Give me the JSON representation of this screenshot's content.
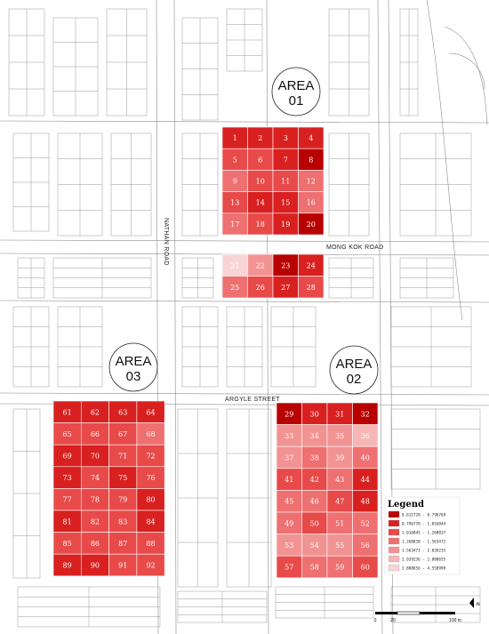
{
  "areas": [
    {
      "id": "01",
      "line1": "AREA",
      "line2": "01"
    },
    {
      "id": "02",
      "line1": "AREA",
      "line2": "02"
    },
    {
      "id": "03",
      "line1": "AREA",
      "line2": "03"
    }
  ],
  "roads": {
    "nathan_road": "NATHAN ROAD",
    "mong_kok_road": "MONG KOK ROAD",
    "argyle_street": "ARGYLE STREET"
  },
  "legend": {
    "title": "Legend",
    "classes": [
      {
        "label": "0.611728 - 0.796769",
        "color": "#b80000"
      },
      {
        "label": "0.796770 - 1.016844",
        "color": "#d92020"
      },
      {
        "label": "1.016845 - 1.260837",
        "color": "#e84a4a"
      },
      {
        "label": "1.260838 - 1.563472",
        "color": "#ee7070"
      },
      {
        "label": "1.563473 - 2.039235",
        "color": "#f29393"
      },
      {
        "label": "2.039236 - 2.888655",
        "color": "#f6b6b6"
      },
      {
        "label": "2.888656 - 4.558999",
        "color": "#f9d4d4"
      }
    ]
  },
  "scale": {
    "labels": [
      "0",
      "20",
      "100 m"
    ]
  },
  "north_label": "N",
  "colors": {
    "c1": "#b80000",
    "c2": "#d92020",
    "c3": "#e84a4a",
    "c4": "#ee7070",
    "c5": "#f29393",
    "c6": "#f6b6b6",
    "c7": "#f9d4d4"
  },
  "cells": [
    {
      "n": "1",
      "c": 2
    },
    {
      "n": "2",
      "c": 2
    },
    {
      "n": "3",
      "c": 2
    },
    {
      "n": "4",
      "c": 2
    },
    {
      "n": "5",
      "c": 3
    },
    {
      "n": "6",
      "c": 3
    },
    {
      "n": "7",
      "c": 2
    },
    {
      "n": "8",
      "c": 1
    },
    {
      "n": "9",
      "c": 4
    },
    {
      "n": "10",
      "c": 3
    },
    {
      "n": "11",
      "c": 3
    },
    {
      "n": "12",
      "c": 4
    },
    {
      "n": "13",
      "c": 3
    },
    {
      "n": "14",
      "c": 2
    },
    {
      "n": "15",
      "c": 2
    },
    {
      "n": "16",
      "c": 4
    },
    {
      "n": "17",
      "c": 4
    },
    {
      "n": "18",
      "c": 3
    },
    {
      "n": "19",
      "c": 2
    },
    {
      "n": "20",
      "c": 1
    },
    {
      "n": "21",
      "c": 7
    },
    {
      "n": "22",
      "c": 5
    },
    {
      "n": "23",
      "c": 1
    },
    {
      "n": "24",
      "c": 2
    },
    {
      "n": "25",
      "c": 4
    },
    {
      "n": "26",
      "c": 3
    },
    {
      "n": "27",
      "c": 2
    },
    {
      "n": "28",
      "c": 3
    },
    {
      "n": "29",
      "c": 1
    },
    {
      "n": "30",
      "c": 2
    },
    {
      "n": "31",
      "c": 2
    },
    {
      "n": "32",
      "c": 1
    },
    {
      "n": "33",
      "c": 5
    },
    {
      "n": "34",
      "c": 5
    },
    {
      "n": "35",
      "c": 5
    },
    {
      "n": "36",
      "c": 6
    },
    {
      "n": "37",
      "c": 5
    },
    {
      "n": "38",
      "c": 4
    },
    {
      "n": "39",
      "c": 5
    },
    {
      "n": "40",
      "c": 4
    },
    {
      "n": "41",
      "c": 3
    },
    {
      "n": "42",
      "c": 3
    },
    {
      "n": "43",
      "c": 4
    },
    {
      "n": "44",
      "c": 2
    },
    {
      "n": "45",
      "c": 4
    },
    {
      "n": "46",
      "c": 4
    },
    {
      "n": "47",
      "c": 3
    },
    {
      "n": "48",
      "c": 2
    },
    {
      "n": "49",
      "c": 4
    },
    {
      "n": "50",
      "c": 3
    },
    {
      "n": "51",
      "c": 4
    },
    {
      "n": "52",
      "c": 4
    },
    {
      "n": "53",
      "c": 5
    },
    {
      "n": "54",
      "c": 5
    },
    {
      "n": "55",
      "c": 5
    },
    {
      "n": "56",
      "c": 4
    },
    {
      "n": "57",
      "c": 3
    },
    {
      "n": "58",
      "c": 4
    },
    {
      "n": "59",
      "c": 4
    },
    {
      "n": "60",
      "c": 3
    },
    {
      "n": "61",
      "c": 2
    },
    {
      "n": "62",
      "c": 2
    },
    {
      "n": "63",
      "c": 2
    },
    {
      "n": "64",
      "c": 2
    },
    {
      "n": "65",
      "c": 3
    },
    {
      "n": "66",
      "c": 3
    },
    {
      "n": "67",
      "c": 3
    },
    {
      "n": "68",
      "c": 4
    },
    {
      "n": "69",
      "c": 2
    },
    {
      "n": "70",
      "c": 2
    },
    {
      "n": "71",
      "c": 3
    },
    {
      "n": "72",
      "c": 3
    },
    {
      "n": "73",
      "c": 2
    },
    {
      "n": "74",
      "c": 3
    },
    {
      "n": "75",
      "c": 2
    },
    {
      "n": "76",
      "c": 3
    },
    {
      "n": "77",
      "c": 3
    },
    {
      "n": "78",
      "c": 3
    },
    {
      "n": "79",
      "c": 3
    },
    {
      "n": "80",
      "c": 2
    },
    {
      "n": "81",
      "c": 2
    },
    {
      "n": "82",
      "c": 3
    },
    {
      "n": "83",
      "c": 3
    },
    {
      "n": "84",
      "c": 2
    },
    {
      "n": "85",
      "c": 3
    },
    {
      "n": "86",
      "c": 3
    },
    {
      "n": "87",
      "c": 3
    },
    {
      "n": "88",
      "c": 3
    },
    {
      "n": "89",
      "c": 2
    },
    {
      "n": "90",
      "c": 2
    },
    {
      "n": "91",
      "c": 3
    },
    {
      "n": "92",
      "c": 3
    }
  ]
}
